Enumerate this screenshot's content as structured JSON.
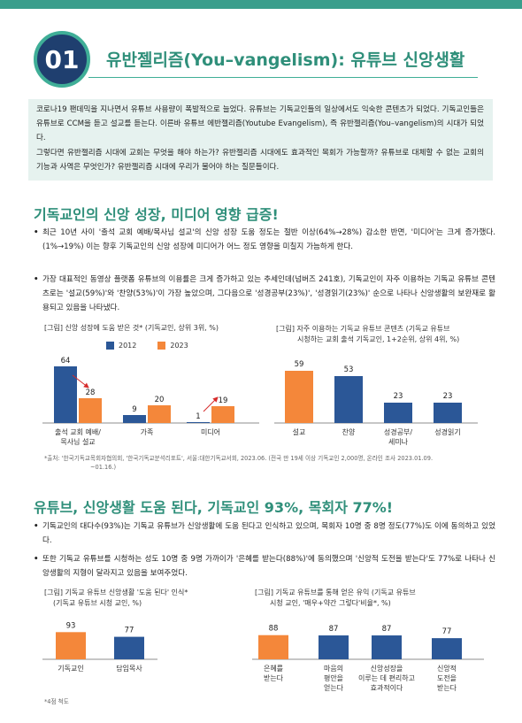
{
  "header": {
    "number": "01",
    "title": "유반젤리즘(You–vangelism): 유튜브 신앙생활"
  },
  "intro": {
    "p1": "코로나19 팬데믹을 지나면서 유튜브 사용량이 폭발적으로 늘었다. 유튜브는 기독교인들의 일상에서도 익숙한 콘텐츠가 되었다. 기독교인들은 유튜브로 CCM을 듣고 설교를 듣는다. 이른바 유튜브 에반젤리즘(Youtube Evangelism), 즉 유반젤리즘(You–vangelism)의 시대가 되었다.",
    "p2": "그렇다면 유반젤리즘 시대에 교회는 무엇을 해야 하는가? 유반젤리즘 시대에도 효과적인 목회가 가능할까? 유튜브로 대체할 수 없는 교회의 기능과 사역은 무엇인가? 유반젤리즘 시대에 우리가 물어야 하는 질문들이다."
  },
  "section1": {
    "title": "기독교인의 신앙 성장, 미디어 영향 급증!",
    "bullet1": "최근 10년 사이 '출석 교회 예배/목사님 설교'의 신앙 성장 도움 정도는 절반 이상(64%→28%) 감소한 반면, '미디어'는 크게 증가했다.(1%→19%) 이는 향후 기독교인의 신앙 성장에 미디어가 어느 정도 영향을 미칠지 가늠하게 한다.",
    "bullet2": "가장 대표적인 동영상 플랫폼 유튜브의 이용률은 크게 증가하고 있는 추세인데(넘버즈 241호), 기독교인이 자주 이용하는 기독교 유튜브 콘텐츠로는 '설교(59%)'와 '찬양(53%)'이 가장 높았으며, 그다음으로 '성경공부(23%)', '성경읽기(23%)' 순으로 나타나 신앙생활의 보완재로 활용되고 있음을 나타냈다."
  },
  "fig1": {
    "caption": "[그림] 신앙 성장에 도움 받은 것* (기독교인, 상위 3위, %)",
    "legend": [
      "2012",
      "2023"
    ]
  },
  "fig2": {
    "caption_line1": "[그림] 자주 이용하는 기독교 유튜브 콘텐츠 (기독교 유튜브",
    "caption_line2": "시청하는 교회 출석 기독교인, 1+2순위, 상위 4위, %)"
  },
  "source_note": {
    "line1": "*출처: '한국기독교목회자협의회, '한국기독교분석리포트', 서울:대한기독교서회, 2023.06. (전국 만 19세 이상 기독교인 2,000명, 온라인 조사 2023.01.09.",
    "line2": "~01.16.)"
  },
  "section2": {
    "title": "유튜브, 신앙생활 도움 된다, 기독교인 93%, 목회자 77%!",
    "bullet1": "기독교인의 대다수(93%)는 기독교 유튜브가 신앙생활에 도움 된다고 인식하고 있으며, 목회자 10명 중 8명 정도(77%)도 이에 동의하고 있었다.",
    "bullet2": "또한 기독교 유튜브를 시청하는 성도 10명 중 9명 가까이가 '은혜를 받는다(88%)'에 동의했으며 '신앙적 도전을 받는다'도 77%로 나타나 신앙생활의 지형이 달라지고 있음을 보여주었다."
  },
  "fig3": {
    "caption_line1": "[그림] 기독교 유튜브 신앙생활 '도움 된다' 인식*",
    "caption_line2": "(기독교 유튜브 시청 교인, %)"
  },
  "fig4": {
    "caption_line1": "[그림] 기독교 유튜브를 통해 얻은 유익 (기독교 유튜브",
    "caption_line2": "시청 교인, '매우+약간 그렇다'비율*, %)"
  },
  "footnote": "*4점 척도",
  "colors": {
    "navy": "#2b5797",
    "orange": "#f4873a",
    "teal": "#2f8f7a"
  },
  "chart_data": [
    {
      "type": "bar",
      "title": "신앙 성장에 도움 받은 것* (기독교인, 상위 3위, %)",
      "categories": [
        "출석 교회 예배/\n목사님 설교",
        "가족",
        "미디어"
      ],
      "series": [
        {
          "name": "2012",
          "values": [
            64,
            9,
            1
          ]
        },
        {
          "name": "2023",
          "values": [
            28,
            20,
            19
          ]
        }
      ],
      "ylim": [
        0,
        70
      ],
      "legend": "top"
    },
    {
      "type": "bar",
      "title": "자주 이용하는 기독교 유튜브 콘텐츠",
      "categories": [
        "설교",
        "찬양",
        "성경공부/\n세미나",
        "성경읽기"
      ],
      "values": [
        59,
        53,
        23,
        23
      ],
      "ylim": [
        0,
        70
      ]
    },
    {
      "type": "bar",
      "title": "기독교 유튜브 신앙생활 '도움 된다' 인식*",
      "categories": [
        "기독교인",
        "담임목사"
      ],
      "values": [
        93,
        77
      ],
      "ylim": [
        0,
        100
      ]
    },
    {
      "type": "bar",
      "title": "기독교 유튜브를 통해 얻은 유익",
      "categories": [
        "은혜를\n받는다",
        "마음의\n평안을\n얻는다",
        "신앙성장을\n이루는 데 편리하고\n효과적이다",
        "신앙적\n도전을\n받는다"
      ],
      "values": [
        88,
        87,
        87,
        77
      ],
      "ylim": [
        0,
        100
      ]
    }
  ]
}
